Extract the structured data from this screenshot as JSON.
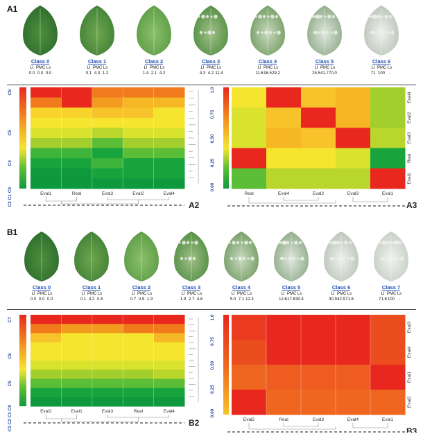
{
  "panels": {
    "A1": "A1",
    "A2": "A2",
    "A3": "A3",
    "B1": "B1",
    "B2": "B2",
    "B3": "B3"
  },
  "metric_headers": {
    "lf": "LI",
    "pmc": "PMC",
    "ls": "Ls"
  },
  "A_classes": [
    {
      "name": "Class 0",
      "v1": "0.0",
      "v2": "0.0",
      "v3": "0.0"
    },
    {
      "name": "Class 1",
      "v1": "0.1",
      "v2": "4.3",
      "v3": "1.2"
    },
    {
      "name": "Class 2",
      "v1": "1.4",
      "v2": "2.1",
      "v3": "4.2"
    },
    {
      "name": "Class 3",
      "v1": "4.3",
      "v2": "4.2",
      "v3": "11.4"
    },
    {
      "name": "Class 4",
      "v1": "11.6",
      "v2": "16.5",
      "v3": "29.2"
    },
    {
      "name": "Class 5",
      "v1": "25.5",
      "v2": "41.7",
      "v3": "70.0"
    },
    {
      "name": "Class 6",
      "v1": "71",
      "v2": "100",
      "v3": "-"
    }
  ],
  "B_classes": [
    {
      "name": "Class 0",
      "v1": "0.0",
      "v2": "0.0",
      "v3": "0.0"
    },
    {
      "name": "Class 1",
      "v1": "0.1",
      "v2": "4.2",
      "v3": "0.8"
    },
    {
      "name": "Class 2",
      "v1": "0.7",
      "v2": "0.9",
      "v3": "1.9"
    },
    {
      "name": "Class 3",
      "v1": "1.9",
      "v2": "2.7",
      "v3": "4.8"
    },
    {
      "name": "Class 4",
      "v1": "5.0",
      "v2": "7.1",
      "v3": "12.4"
    },
    {
      "name": "Class 5",
      "v1": "12.6",
      "v2": "17.6",
      "v3": "30.4"
    },
    {
      "name": "Class 6",
      "v1": "30.9",
      "v2": "42.9",
      "v3": "71.6"
    },
    {
      "name": "Class 7",
      "v1": "71.6",
      "v2": "100",
      "v3": "-"
    }
  ],
  "A2": {
    "columns": [
      "Eval1",
      "Real",
      "Eval3",
      "Eval2",
      "Eval4"
    ],
    "scale_labels": [
      "C6",
      "C5",
      "C4",
      "C3 C2 C1 C0"
    ],
    "colors": {
      "Eval1": [
        "#e8281e",
        "#f07a1c",
        "#f7d32b",
        "#f5e52f",
        "#d9e22c",
        "#a3cf2e",
        "#3fb43a",
        "#17a43c",
        "#0f993e",
        "#0f993e"
      ],
      "Real": [
        "#e8281e",
        "#e8281e",
        "#f7d32b",
        "#f5e52f",
        "#d9e22c",
        "#a3cf2e",
        "#3fb43a",
        "#17a43c",
        "#0f993e",
        "#0f993e"
      ],
      "Eval3": [
        "#f07a1c",
        "#f29b1e",
        "#f7c22a",
        "#f5e52f",
        "#b9d62d",
        "#5cbd36",
        "#17a43c",
        "#3fb43a",
        "#17a43c",
        "#0f993e"
      ],
      "Eval2": [
        "#f07a1c",
        "#f5b824",
        "#f7c22a",
        "#f5e52f",
        "#d9e22c",
        "#a3cf2e",
        "#5cbd36",
        "#17a43c",
        "#17a43c",
        "#0f993e"
      ],
      "Eval4": [
        "#f07a1c",
        "#f5b824",
        "#f5e52f",
        "#f5e52f",
        "#d9e22c",
        "#a3cf2e",
        "#5cbd36",
        "#17a43c",
        "#17a43c",
        "#0f993e"
      ]
    }
  },
  "A3": {
    "columns": [
      "Real",
      "Eval4",
      "Eval2",
      "Eval3",
      "Eval1"
    ],
    "rows": [
      "Eval4",
      "Eval2",
      "Eval3",
      "Real",
      "Eval1"
    ],
    "scale_ticks": [
      "1.0",
      "0.75",
      "0.50",
      "0.25",
      "0.00"
    ],
    "cells": [
      [
        "#f5e52f",
        "#e8281e",
        "#f7c22a",
        "#f5b824",
        "#a3cf2e"
      ],
      [
        "#d9e22c",
        "#f7c22a",
        "#e8281e",
        "#f5b824",
        "#a3cf2e"
      ],
      [
        "#d9e22c",
        "#f5b824",
        "#f7c22a",
        "#e8281e",
        "#b9d62d"
      ],
      [
        "#e8281e",
        "#f5e52f",
        "#f5e52f",
        "#d9e22c",
        "#17a43c"
      ],
      [
        "#5cbd36",
        "#b9d62d",
        "#b9d62d",
        "#b9d62d",
        "#e8281e"
      ]
    ]
  },
  "B2": {
    "columns": [
      "Eval2",
      "Eval1",
      "Eval3",
      "Real",
      "Eval4"
    ],
    "scale_labels": [
      "C7",
      "C6",
      "C5",
      "C4 C3 C2 C1 C0"
    ],
    "colors": {
      "Eval2": [
        "#e8281e",
        "#f07a1c",
        "#f7c22a",
        "#f5e52f",
        "#f5e52f",
        "#d9e22c",
        "#a3cf2e",
        "#5cbd36",
        "#17a43c",
        "#0f993e"
      ],
      "Eval1": [
        "#e8281e",
        "#f29b1e",
        "#f5e52f",
        "#f5e52f",
        "#f5e52f",
        "#d9e22c",
        "#a3cf2e",
        "#5cbd36",
        "#17a43c",
        "#0f993e"
      ],
      "Eval3": [
        "#e8281e",
        "#f29b1e",
        "#f5e52f",
        "#f5e52f",
        "#f5e52f",
        "#d9e22c",
        "#a3cf2e",
        "#5cbd36",
        "#17a43c",
        "#0f993e"
      ],
      "Real": [
        "#e8281e",
        "#f07a1c",
        "#f5e52f",
        "#f5e52f",
        "#f5e52f",
        "#d9e22c",
        "#a3cf2e",
        "#5cbd36",
        "#17a43c",
        "#0f993e"
      ],
      "Eval4": [
        "#e8281e",
        "#f07a1c",
        "#f5b824",
        "#f5e52f",
        "#f5e52f",
        "#d9e22c",
        "#b9d62d",
        "#5cbd36",
        "#17a43c",
        "#0f993e"
      ]
    }
  },
  "B3": {
    "columns": [
      "Eval2",
      "Real",
      "Eval3",
      "Eval4",
      "Eval1"
    ],
    "rows": [
      "Eval3",
      "Eval4",
      "Eval1",
      "Eval2"
    ],
    "scale_ticks": [
      "1.0",
      "0.75",
      "0.50",
      "0.25",
      "0.00"
    ],
    "cells": [
      [
        "#ea3a1f",
        "#e8281e",
        "#e8281e",
        "#e8281e",
        "#ec4d1f"
      ],
      [
        "#ec4d1f",
        "#e8281e",
        "#e8281e",
        "#e8281e",
        "#ec4d1f"
      ],
      [
        "#ef6620",
        "#ee5c20",
        "#ee5c20",
        "#ee5c20",
        "#e8281e"
      ],
      [
        "#e8281e",
        "#ef6620",
        "#ef6620",
        "#ef6620",
        "#ef6620"
      ]
    ]
  }
}
